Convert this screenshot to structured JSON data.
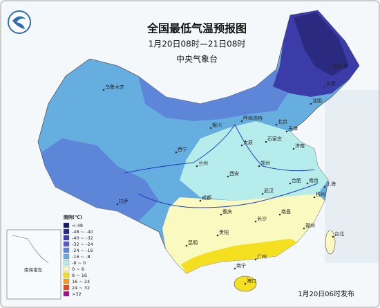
{
  "header": {
    "title": "全国最低气温预报图",
    "period": "1月20日08时—21日08时",
    "issuer": "中央气象台"
  },
  "legend": {
    "title": "图例(℃)",
    "items": [
      {
        "label": "<-48",
        "color": "#1a1a5e"
      },
      {
        "label": "-48 ~ -40",
        "color": "#2a2a80"
      },
      {
        "label": "-40 ~ -32",
        "color": "#3c3ca8"
      },
      {
        "label": "-32 ~ -24",
        "color": "#5a5ad0"
      },
      {
        "label": "-24 ~ -16",
        "color": "#5e86d8"
      },
      {
        "label": "-16 ~ -8",
        "color": "#66aee0"
      },
      {
        "label": "-8 ~ 0",
        "color": "#b6ecec"
      },
      {
        "label": "0 ~ 8",
        "color": "#fafac0"
      },
      {
        "label": "8 ~ 16",
        "color": "#f5e020"
      },
      {
        "label": "16 ~ 24",
        "color": "#f0a020"
      },
      {
        "label": "24 ~ 32",
        "color": "#e05020"
      },
      {
        "label": ">32",
        "color": "#a01090"
      }
    ]
  },
  "inset": {
    "label": "南海诸岛"
  },
  "cities": [
    "乌鲁木齐",
    "哈尔滨",
    "长春",
    "沈阳",
    "呼和浩特",
    "北京",
    "天津",
    "石家庄",
    "太原",
    "济南",
    "银川",
    "西宁",
    "兰州",
    "西安",
    "郑州",
    "南京",
    "合肥",
    "上海",
    "杭州",
    "武汉",
    "成都",
    "重庆",
    "贵阳",
    "长沙",
    "南昌",
    "福州",
    "台北",
    "昆明",
    "南宁",
    "广州",
    "海口",
    "拉萨"
  ],
  "footer": {
    "issued": "1月20日06时发布"
  }
}
